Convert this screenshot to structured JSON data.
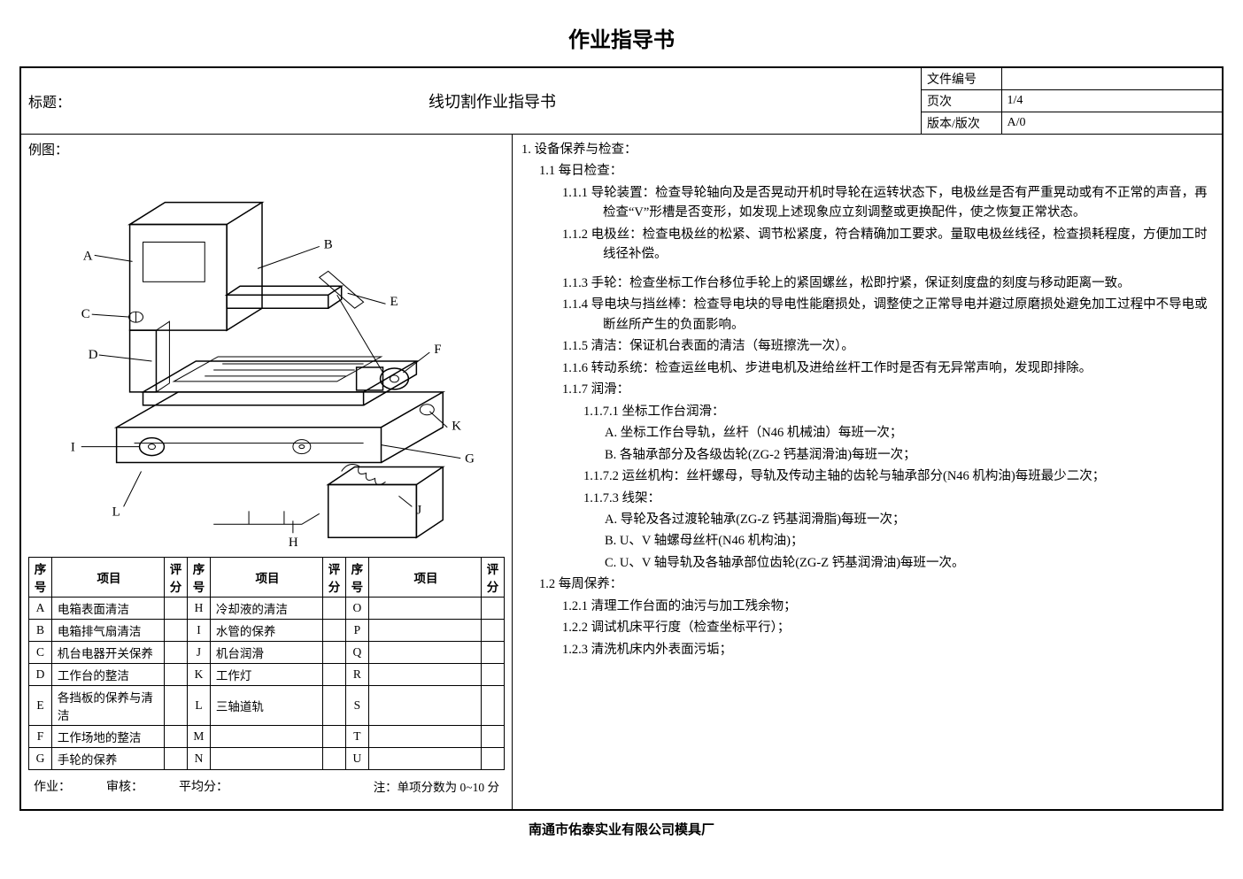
{
  "main_title": "作业指导书",
  "header": {
    "title_label": "标题：",
    "subtitle": "线切割作业指导书",
    "meta": [
      {
        "k": "文件编号",
        "v": ""
      },
      {
        "k": "页次",
        "v": "1/4"
      },
      {
        "k": "版本/版次",
        "v": "A/0"
      }
    ]
  },
  "example_label": "例图：",
  "diagram_labels": [
    "A",
    "B",
    "C",
    "D",
    "E",
    "F",
    "G",
    "H",
    "I",
    "J",
    "K",
    "L"
  ],
  "check_table": {
    "headers": [
      "序号",
      "项目",
      "评分",
      "序号",
      "项目",
      "评分",
      "序号",
      "项目",
      "评分"
    ],
    "rows": [
      [
        "A",
        "电箱表面清洁",
        "",
        "H",
        "冷却液的清洁",
        "",
        "O",
        "",
        ""
      ],
      [
        "B",
        "电箱排气扇清洁",
        "",
        "I",
        "水管的保养",
        "",
        "P",
        "",
        ""
      ],
      [
        "C",
        "机台电器开关保养",
        "",
        "J",
        "机台润滑",
        "",
        "Q",
        "",
        ""
      ],
      [
        "D",
        "工作台的整洁",
        "",
        "K",
        "工作灯",
        "",
        "R",
        "",
        ""
      ],
      [
        "E",
        "各挡板的保养与清洁",
        "",
        "L",
        "三轴道轨",
        "",
        "S",
        "",
        ""
      ],
      [
        "F",
        "工作场地的整洁",
        "",
        "M",
        "",
        "",
        "T",
        "",
        ""
      ],
      [
        "G",
        "手轮的保养",
        "",
        "N",
        "",
        "",
        "U",
        "",
        ""
      ]
    ]
  },
  "footer": {
    "f1": "作业：",
    "f2": "审核：",
    "f3": "平均分：",
    "note": "注：单项分数为 0~10 分"
  },
  "right": {
    "s1": "1. 设备保养与检查：",
    "s11": "1.1 每日检查：",
    "s111": "1.1.1 导轮装置：检查导轮轴向及是否晃动开机时导轮在运转状态下，电极丝是否有严重晃动或有不正常的声音，再检查“V”形槽是否变形，如发现上述现象应立刻调整或更换配件，使之恢复正常状态。",
    "s112": "1.1.2 电极丝：检查电极丝的松紧、调节松紧度，符合精确加工要求。量取电极丝线径，检查损耗程度，方便加工时线径补偿。",
    "s113": "1.1.3 手轮：检查坐标工作台移位手轮上的紧固螺丝，松即拧紧，保证刻度盘的刻度与移动距离一致。",
    "s114": "1.1.4 导电块与挡丝棒：检查导电块的导电性能磨损处，调整使之正常导电并避过原磨损处避免加工过程中不导电或断丝所产生的负面影响。",
    "s115": "1.1.5 清洁：保证机台表面的清洁（每班擦洗一次）。",
    "s116": "1.1.6 转动系统：检查运丝电机、步进电机及进给丝杆工作时是否有无异常声响，发现即排除。",
    "s117": "1.1.7 润滑：",
    "s1171": "1.1.7.1 坐标工作台润滑：",
    "s1171a": "A. 坐标工作台导轨，丝杆（N46 机械油）每班一次；",
    "s1171b": "B. 各轴承部分及各级齿轮(ZG-2 钙基润滑油)每班一次；",
    "s1172": "1.1.7.2 运丝机构：丝杆螺母，导轨及传动主轴的齿轮与轴承部分(N46 机构油)每班最少二次；",
    "s1173": "1.1.7.3 线架：",
    "s1173a": "A. 导轮及各过渡轮轴承(ZG-Z 钙基润滑脂)每班一次；",
    "s1173b": "B. U、V 轴螺母丝杆(N46 机构油)；",
    "s1173c": "C. U、V 轴导轨及各轴承部位齿轮(ZG-Z 钙基润滑油)每班一次。",
    "s12": "1.2 每周保养：",
    "s121": "1.2.1 清理工作台面的油污与加工残余物；",
    "s122": "1.2.2 调试机床平行度（检查坐标平行）；",
    "s123": "1.2.3 清洗机床内外表面污垢；"
  },
  "company": "南通市佑泰实业有限公司模具厂"
}
